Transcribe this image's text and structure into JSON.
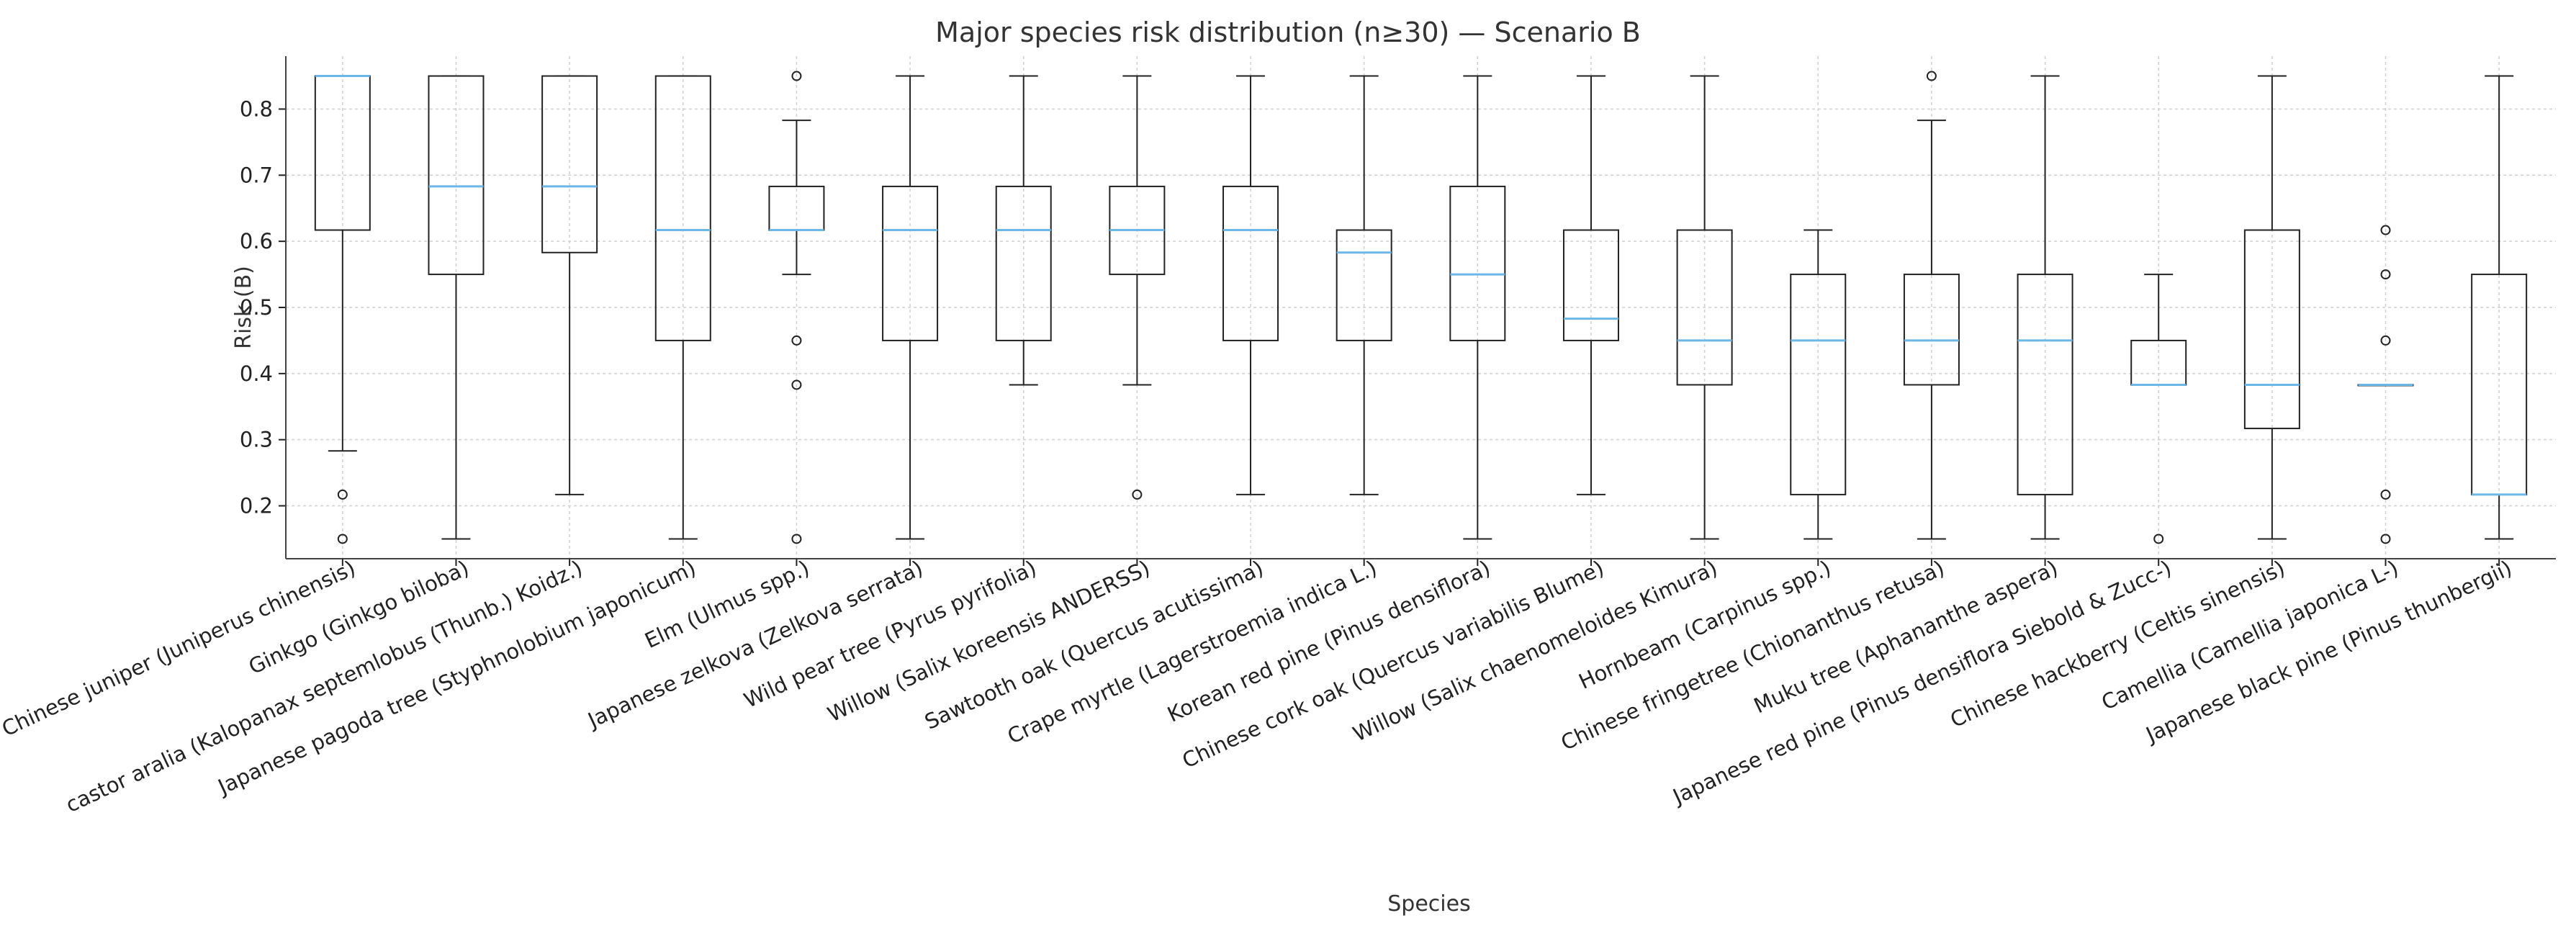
{
  "chart_data": {
    "type": "box",
    "title": "Major species risk distribution (n≥30) — Scenario B",
    "xlabel": "Species",
    "ylabel": "Risk (B)",
    "ylim": [
      0.12,
      0.88
    ],
    "y_ticks": [
      0.2,
      0.3,
      0.4,
      0.5,
      0.6,
      0.7,
      0.8
    ],
    "grid": true,
    "categories": [
      "Chinese juniper (Juniperus chinensis)",
      "Ginkgo (Ginkgo biloba)",
      "castor aralia (Kalopanax septemlobus (Thunb.) Koidz.)",
      "Japanese pagoda tree (Styphnolobium japonicum)",
      "Elm (Ulmus spp.)",
      "Japanese zelkova (Zelkova serrata)",
      "Wild pear tree (Pyrus pyrifolia)",
      "Willow (Salix koreensis ANDERSS)",
      "Sawtooth oak (Quercus acutissima)",
      "Crape myrtle (Lagerstroemia indica L.)",
      "Korean red pine (Pinus densiflora)",
      "Chinese cork oak (Quercus variabilis Blume)",
      "Willow (Salix chaenomeloides Kimura)",
      "Hornbeam (Carpinus spp.)",
      "Chinese fringetree (Chionanthus retusa)",
      "Muku tree (Aphananthe aspera)",
      "Japanese red pine (Pinus densiflora Siebold & Zucc-)",
      "Chinese hackberry (Celtis sinensis)",
      "Camellia (Camellia japonica L-)",
      "Japanese black pine (Pinus thunbergii)"
    ],
    "series": [
      {
        "whislo": 0.283,
        "q1": 0.617,
        "med": 0.85,
        "q3": 0.85,
        "whishi": 0.85,
        "fliers": [
          0.217,
          0.15
        ]
      },
      {
        "whislo": 0.15,
        "q1": 0.55,
        "med": 0.683,
        "q3": 0.85,
        "whishi": 0.85,
        "fliers": []
      },
      {
        "whislo": 0.217,
        "q1": 0.583,
        "med": 0.683,
        "q3": 0.85,
        "whishi": 0.85,
        "fliers": []
      },
      {
        "whislo": 0.15,
        "q1": 0.45,
        "med": 0.617,
        "q3": 0.85,
        "whishi": 0.85,
        "fliers": []
      },
      {
        "whislo": 0.55,
        "q1": 0.617,
        "med": 0.617,
        "q3": 0.683,
        "whishi": 0.783,
        "fliers": [
          0.85,
          0.45,
          0.383,
          0.15
        ]
      },
      {
        "whislo": 0.15,
        "q1": 0.45,
        "med": 0.617,
        "q3": 0.683,
        "whishi": 0.85,
        "fliers": []
      },
      {
        "whislo": 0.383,
        "q1": 0.45,
        "med": 0.617,
        "q3": 0.683,
        "whishi": 0.85,
        "fliers": []
      },
      {
        "whislo": 0.383,
        "q1": 0.55,
        "med": 0.617,
        "q3": 0.683,
        "whishi": 0.85,
        "fliers": [
          0.217
        ]
      },
      {
        "whislo": 0.217,
        "q1": 0.45,
        "med": 0.617,
        "q3": 0.683,
        "whishi": 0.85,
        "fliers": []
      },
      {
        "whislo": 0.217,
        "q1": 0.45,
        "med": 0.583,
        "q3": 0.617,
        "whishi": 0.85,
        "fliers": []
      },
      {
        "whislo": 0.15,
        "q1": 0.45,
        "med": 0.55,
        "q3": 0.683,
        "whishi": 0.85,
        "fliers": []
      },
      {
        "whislo": 0.217,
        "q1": 0.45,
        "med": 0.483,
        "q3": 0.617,
        "whishi": 0.85,
        "fliers": []
      },
      {
        "whislo": 0.15,
        "q1": 0.383,
        "med": 0.45,
        "q3": 0.617,
        "whishi": 0.85,
        "fliers": []
      },
      {
        "whislo": 0.15,
        "q1": 0.217,
        "med": 0.45,
        "q3": 0.55,
        "whishi": 0.617,
        "fliers": []
      },
      {
        "whislo": 0.15,
        "q1": 0.383,
        "med": 0.45,
        "q3": 0.55,
        "whishi": 0.783,
        "fliers": [
          0.85
        ]
      },
      {
        "whislo": 0.15,
        "q1": 0.217,
        "med": 0.45,
        "q3": 0.55,
        "whishi": 0.85,
        "fliers": []
      },
      {
        "whislo": 0.383,
        "q1": 0.383,
        "med": 0.383,
        "q3": 0.45,
        "whishi": 0.55,
        "fliers": [
          0.15
        ]
      },
      {
        "whislo": 0.15,
        "q1": 0.317,
        "med": 0.383,
        "q3": 0.617,
        "whishi": 0.85,
        "fliers": []
      },
      {
        "whislo": 0.383,
        "q1": 0.383,
        "med": 0.383,
        "q3": 0.383,
        "whishi": 0.383,
        "fliers": [
          0.617,
          0.55,
          0.45,
          0.217,
          0.15
        ]
      },
      {
        "whislo": 0.15,
        "q1": 0.217,
        "med": 0.217,
        "q3": 0.55,
        "whishi": 0.85,
        "fliers": []
      }
    ]
  },
  "colors": {
    "box": "#222222",
    "median": "#6bb7e8",
    "grid": "#d0d0d0",
    "text": "#333333"
  }
}
